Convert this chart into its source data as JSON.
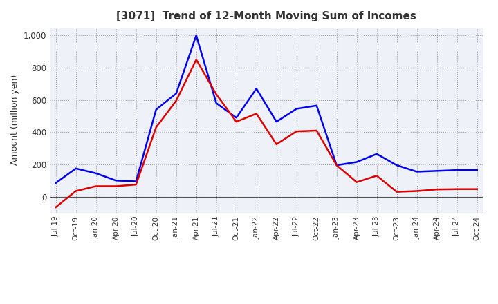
{
  "title": "[3071]  Trend of 12-Month Moving Sum of Incomes",
  "ylabel": "Amount (million yen)",
  "background_color": "#ffffff",
  "plot_bg_color": "#eef2f8",
  "grid_color": "#aaaaaa",
  "x_labels": [
    "Jul-19",
    "Oct-19",
    "Jan-20",
    "Apr-20",
    "Jul-20",
    "Oct-20",
    "Jan-21",
    "Apr-21",
    "Jul-21",
    "Oct-21",
    "Jan-22",
    "Apr-22",
    "Jul-22",
    "Oct-22",
    "Jan-23",
    "Apr-23",
    "Jul-23",
    "Oct-23",
    "Jan-24",
    "Apr-24",
    "Jul-24",
    "Oct-24"
  ],
  "ordinary_income": [
    85,
    175,
    145,
    100,
    95,
    540,
    640,
    1000,
    580,
    490,
    670,
    465,
    545,
    565,
    195,
    215,
    265,
    195,
    155,
    160,
    165,
    165
  ],
  "net_income": [
    -65,
    35,
    65,
    65,
    75,
    430,
    595,
    850,
    635,
    465,
    515,
    325,
    405,
    410,
    195,
    90,
    130,
    30,
    35,
    45,
    47,
    47
  ],
  "ordinary_color": "#0000ee",
  "net_color": "#dd0000",
  "ylim_min": -100,
  "ylim_max": 1050,
  "yticks": [
    0,
    200,
    400,
    600,
    800,
    1000
  ],
  "line_width": 1.8,
  "title_color": "#333333",
  "tick_color": "#333333"
}
